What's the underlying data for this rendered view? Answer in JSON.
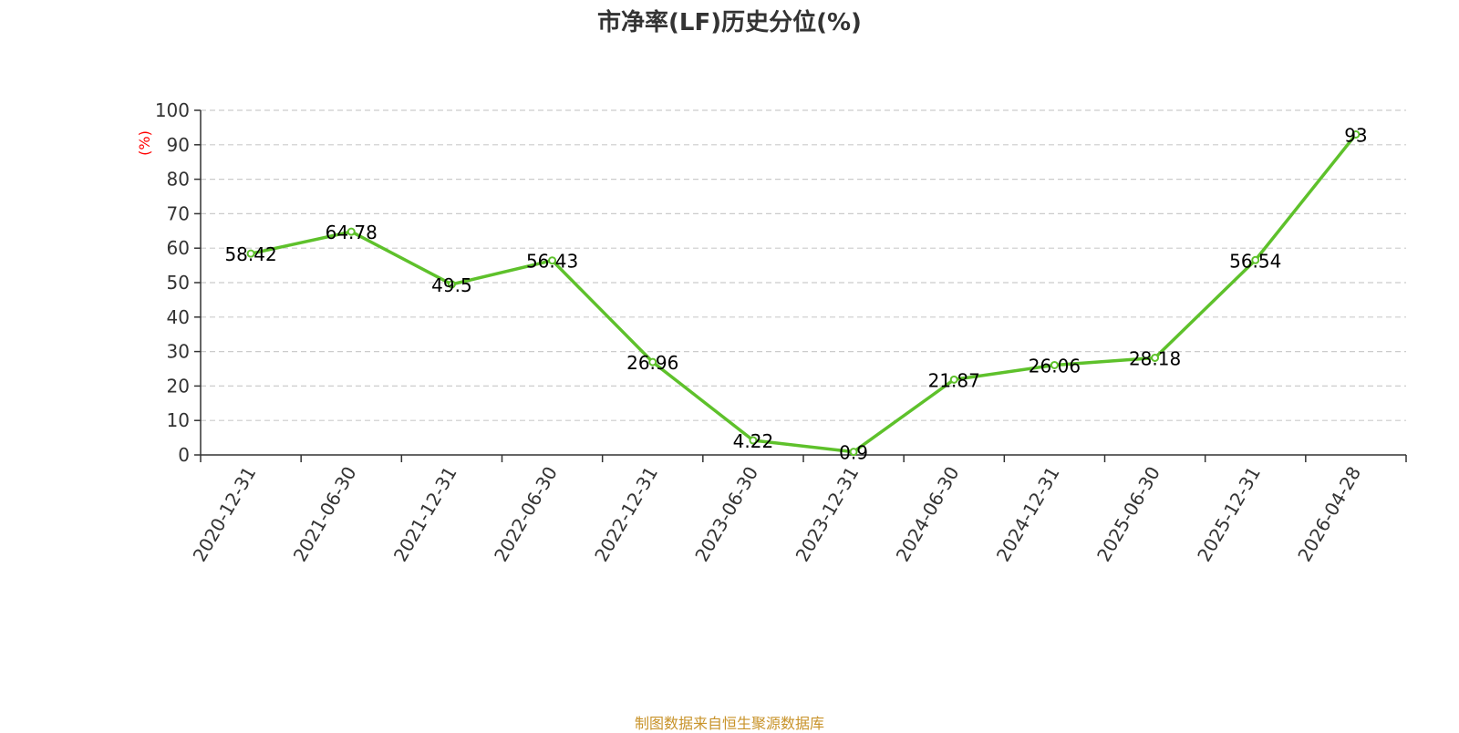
{
  "chart_data": {
    "type": "line",
    "title": "市净率(LF)历史分位(%)",
    "ylabel": "(%)",
    "xlabel": "",
    "categories": [
      "2020-12-31",
      "2021-06-30",
      "2021-12-31",
      "2022-06-30",
      "2022-12-31",
      "2023-06-30",
      "2023-12-31",
      "2024-06-30",
      "2024-12-31",
      "2025-06-30",
      "2025-12-31",
      "2026-04-28"
    ],
    "values": [
      58.42,
      64.78,
      49.5,
      56.43,
      26.96,
      4.22,
      0.9,
      21.87,
      26.06,
      28.18,
      56.54,
      93
    ],
    "value_labels": [
      "58.42",
      "64.78",
      "49.5",
      "56.43",
      "26.96",
      "4.22",
      "0.9",
      "21.87",
      "26.06",
      "28.18",
      "56.54",
      "93"
    ],
    "y_ticks": [
      "0",
      "10",
      "20",
      "30",
      "40",
      "50",
      "60",
      "70",
      "80",
      "90",
      "100"
    ],
    "ylim": [
      0,
      100
    ],
    "grid": true,
    "legend": "none",
    "colors": {
      "line": "#5ec12b",
      "ylabel": "#ff0000",
      "grid": "#cccccc",
      "axis": "#333333",
      "title": "#333333"
    }
  },
  "source_note": "制图数据来自恒生聚源数据库"
}
